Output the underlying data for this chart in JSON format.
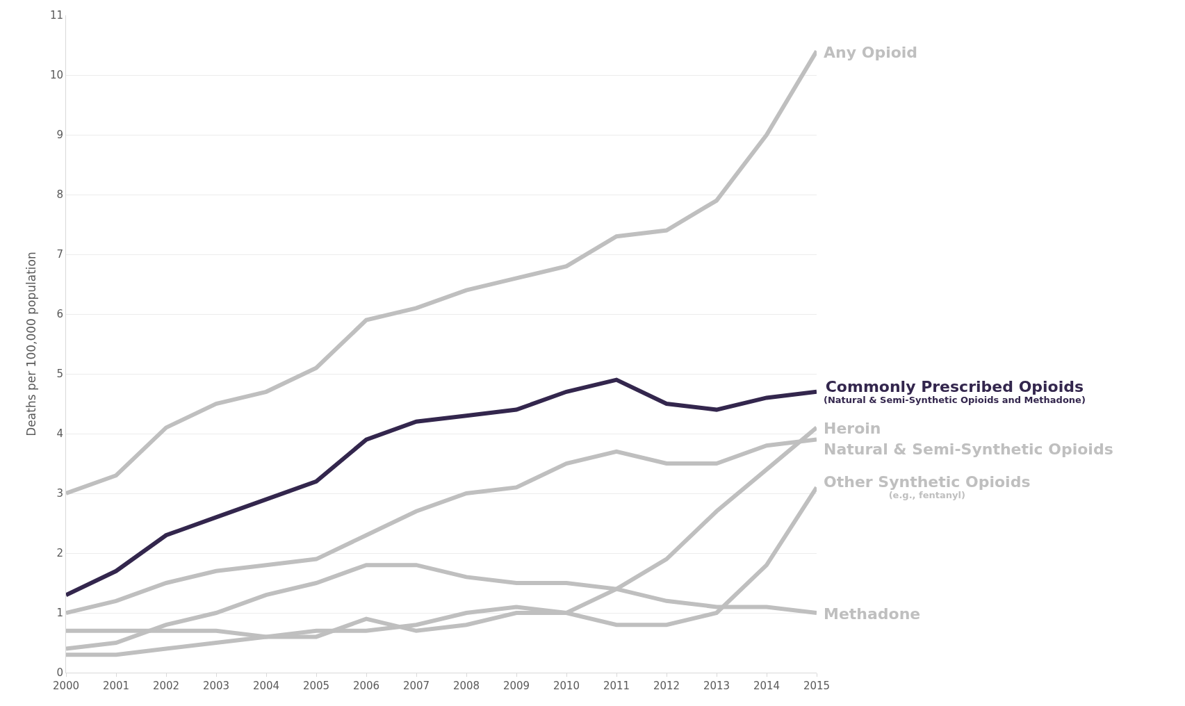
{
  "chart_data": {
    "type": "line",
    "ylabel": "Deaths per 100,000 population",
    "x": [
      2000,
      2001,
      2002,
      2003,
      2004,
      2005,
      2006,
      2007,
      2008,
      2009,
      2010,
      2011,
      2012,
      2013,
      2014,
      2015
    ],
    "series": [
      {
        "name": "Any Opioid",
        "color": "#bfbfbf",
        "values": [
          3.0,
          3.3,
          4.1,
          4.5,
          4.7,
          5.1,
          5.9,
          6.1,
          6.4,
          6.6,
          6.8,
          7.3,
          7.4,
          7.9,
          9.0,
          10.4
        ]
      },
      {
        "name": "Commonly Prescribed Opioids\n(Natural & Semi-Synthetic Opioids and Methadone)",
        "color": "#33264d",
        "values": [
          1.3,
          1.7,
          2.3,
          2.6,
          2.9,
          3.2,
          3.9,
          4.2,
          4.3,
          4.4,
          4.7,
          4.9,
          4.5,
          4.4,
          4.6,
          4.7
        ]
      },
      {
        "name": "Heroin",
        "color": "#bfbfbf",
        "values": [
          0.7,
          0.7,
          0.7,
          0.7,
          0.6,
          0.7,
          0.7,
          0.8,
          1.0,
          1.1,
          1.0,
          1.4,
          1.9,
          2.7,
          3.4,
          4.1
        ]
      },
      {
        "name": "Natural & Semi-Synthetic Opioids",
        "color": "#bfbfbf",
        "values": [
          1.0,
          1.2,
          1.5,
          1.7,
          1.8,
          1.9,
          2.3,
          2.7,
          3.0,
          3.1,
          3.5,
          3.7,
          3.5,
          3.5,
          3.8,
          3.9
        ]
      },
      {
        "name": "Other Synthetic Opioids\n(e.g., fentanyl)",
        "color": "#bfbfbf",
        "values": [
          0.3,
          0.3,
          0.4,
          0.5,
          0.6,
          0.6,
          0.9,
          0.7,
          0.8,
          1.0,
          1.0,
          0.8,
          0.8,
          1.0,
          1.8,
          3.1
        ]
      },
      {
        "name": "Methadone",
        "color": "#bfbfbf",
        "values": [
          0.4,
          0.5,
          0.8,
          1.0,
          1.3,
          1.5,
          1.8,
          1.8,
          1.6,
          1.5,
          1.5,
          1.4,
          1.2,
          1.1,
          1.1,
          1.0
        ]
      }
    ],
    "xlim": [
      2000,
      2015
    ],
    "xticks": [
      2000,
      2001,
      2002,
      2003,
      2004,
      2005,
      2006,
      2007,
      2008,
      2009,
      2010,
      2011,
      2012,
      2013,
      2014,
      2015
    ],
    "ylim": [
      0,
      11
    ],
    "yticks": [
      0,
      1,
      2,
      3,
      4,
      5,
      6,
      7,
      8,
      9,
      10,
      11
    ],
    "grid": "y",
    "marker": "none",
    "line_style": "solid"
  }
}
